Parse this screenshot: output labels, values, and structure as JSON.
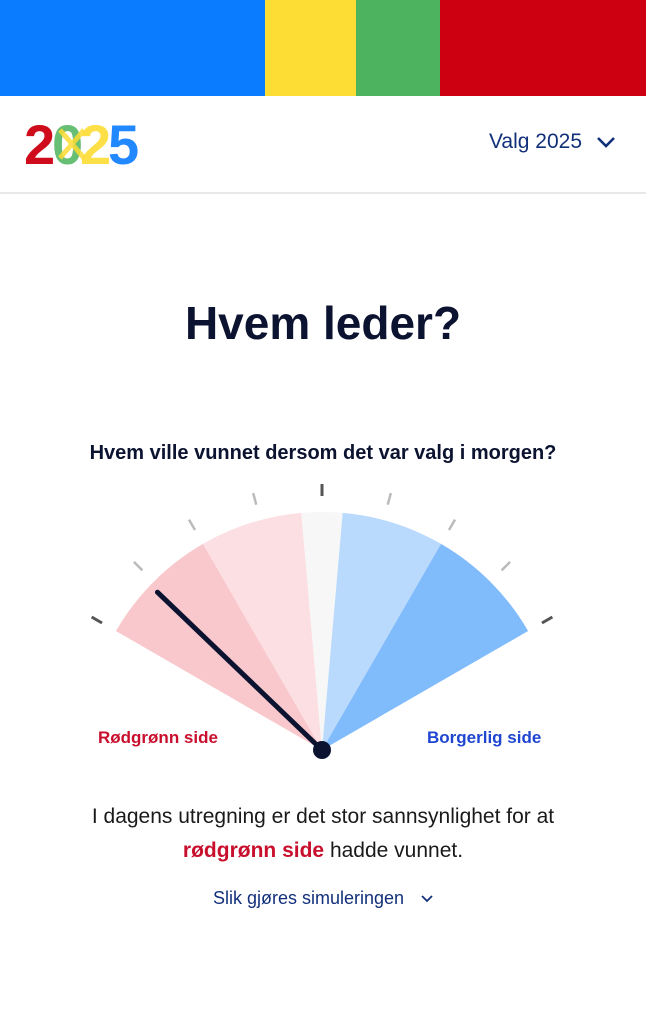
{
  "colors": {
    "stripe_blue": "#0a7cff",
    "stripe_yellow": "#fddc34",
    "stripe_green": "#4db35e",
    "stripe_red": "#cc0010",
    "red_text": "#c8102e",
    "blue_text": "#1f46d1",
    "navy": "#12307a"
  },
  "header": {
    "logo_text": "2025",
    "menu_label": "Valg 2025",
    "menu_icon": "chevron-down-icon"
  },
  "main": {
    "title": "Hvem leder?",
    "question": "Hvem ville vunnet dersom det var valg i morgen?",
    "left_label": "Rødgrønn side",
    "right_label": "Borgerlig side",
    "result_prefix": "I dagens utregning er det stor sannsynlighet for at",
    "result_highlight": "rødgrønn side",
    "result_suffix": "hadde vunnet.",
    "link_label": "Slik gjøres simuleringen"
  },
  "gauge": {
    "needle_value": -0.77,
    "scale": [
      -1,
      1
    ],
    "segments": [
      {
        "from": -1,
        "to": -0.5,
        "color": "#f8c8cc"
      },
      {
        "from": -0.5,
        "to": -0.083,
        "color": "#fcdfe2"
      },
      {
        "from": -0.083,
        "to": 0.083,
        "color": "#f7f7f7"
      },
      {
        "from": 0.083,
        "to": 0.5,
        "color": "#b9dafd"
      },
      {
        "from": 0.5,
        "to": 1,
        "color": "#80bbfb"
      }
    ]
  }
}
